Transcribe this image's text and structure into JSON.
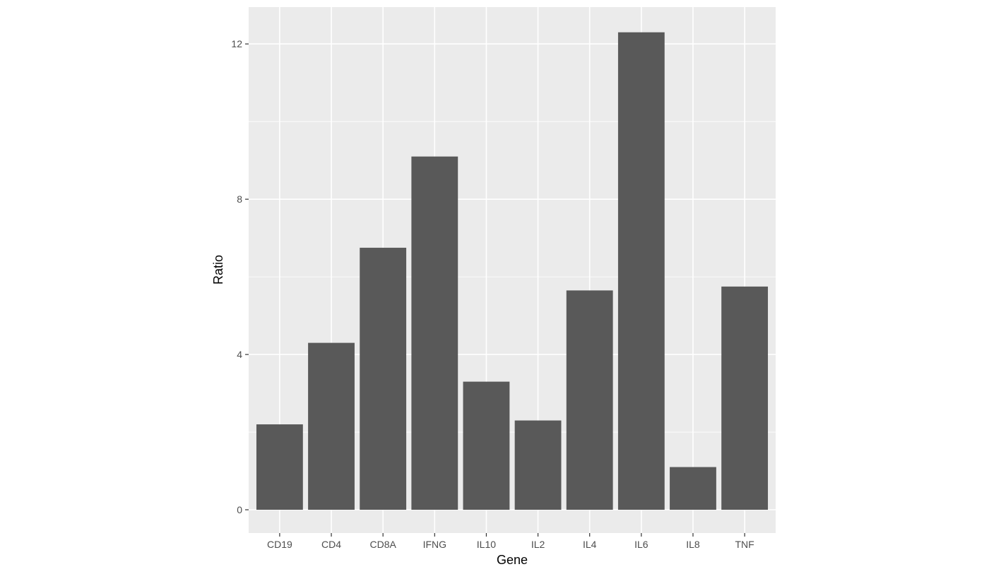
{
  "chart_data": {
    "type": "bar",
    "title": "",
    "xlabel": "Gene",
    "ylabel": "Ratio",
    "categories": [
      "CD19",
      "CD4",
      "CD8A",
      "IFNG",
      "IL10",
      "IL2",
      "IL4",
      "IL6",
      "IL8",
      "TNF"
    ],
    "values": [
      2.2,
      4.3,
      6.75,
      9.1,
      3.3,
      2.3,
      5.65,
      12.3,
      1.1,
      5.75
    ],
    "ylim": [
      -0.6,
      12.95
    ],
    "yticks": [
      0,
      4,
      8,
      12
    ],
    "ytick_labels": [
      "0",
      "4",
      "8",
      "12"
    ],
    "grid": true,
    "bar_color": "#595959",
    "panel_color": "#ebebeb"
  }
}
